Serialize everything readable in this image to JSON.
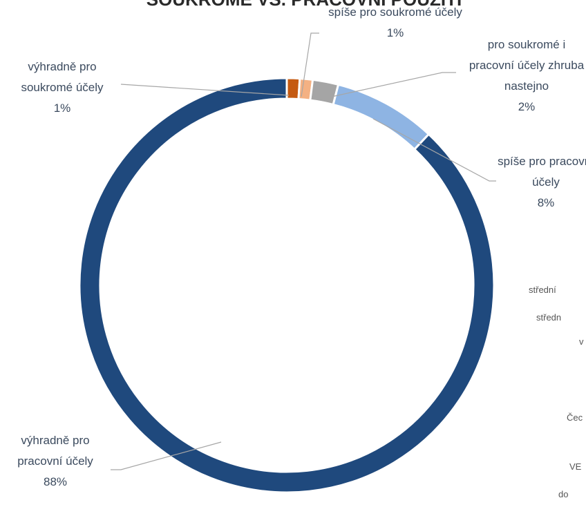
{
  "chart_data": {
    "type": "donut",
    "title": "SOUKROMÉ VS. PRACOVNÍ POUŽITÍ",
    "categories": [
      "výhradně pro soukromé účely",
      "spíše pro soukromé účely",
      "pro soukromé i pracovní účely zhruba nastejno",
      "spíše pro pracovní účely",
      "výhradně pro pracovní účely"
    ],
    "values": [
      1,
      1,
      2,
      8,
      88
    ],
    "value_labels": [
      "1%",
      "1%",
      "2%",
      "8%",
      "88%"
    ],
    "colors": [
      "#c55a11",
      "#f4b183",
      "#a5a5a5",
      "#8eb4e3",
      "#1f497d"
    ]
  },
  "side_texts": [
    "střední",
    "středn",
    "v",
    "Čec",
    "VE",
    "do"
  ]
}
